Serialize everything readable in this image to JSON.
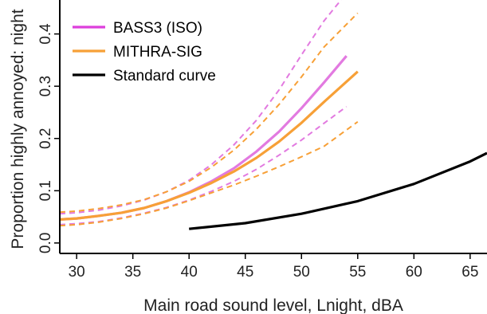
{
  "chart_data": {
    "type": "line",
    "title": "",
    "xlabel": "Main road sound level, Lnight, dBA",
    "ylabel": "Proportion highly annoyed: night",
    "xlim": [
      28.5,
      66.5
    ],
    "ylim": [
      -0.02,
      0.465
    ],
    "xticks": [
      30,
      35,
      40,
      45,
      50,
      55,
      60,
      65
    ],
    "yticks": [
      0.0,
      0.1,
      0.2,
      0.3,
      0.4
    ],
    "ytick_labels": [
      "0.0",
      "0.1",
      "0.2",
      "0.3",
      "0.4"
    ],
    "grid": false,
    "legend_position": "top-left",
    "series": [
      {
        "name": "BASS3 (ISO)",
        "color": "#e27ae0",
        "legend_color": "#dd3fdc",
        "x": [
          28.5,
          30,
          32,
          34,
          36,
          38,
          40,
          42,
          44,
          46,
          48,
          50,
          52,
          54
        ],
        "y": [
          0.045,
          0.047,
          0.052,
          0.058,
          0.067,
          0.08,
          0.097,
          0.118,
          0.143,
          0.175,
          0.213,
          0.258,
          0.307,
          0.358
        ],
        "ci_lower": [
          0.035,
          0.037,
          0.041,
          0.048,
          0.057,
          0.068,
          0.082,
          0.099,
          0.118,
          0.141,
          0.168,
          0.197,
          0.229,
          0.261
        ],
        "ci_upper": [
          0.056,
          0.058,
          0.063,
          0.071,
          0.082,
          0.098,
          0.12,
          0.15,
          0.188,
          0.235,
          0.293,
          0.36,
          0.425,
          0.478
        ]
      },
      {
        "name": "MITHRA-SIG",
        "color": "#f7a037",
        "legend_color": "#f7a037",
        "x": [
          28.5,
          30,
          32,
          34,
          36,
          38,
          40,
          42,
          44,
          46,
          48,
          50,
          52,
          55
        ],
        "y": [
          0.045,
          0.047,
          0.052,
          0.058,
          0.067,
          0.08,
          0.096,
          0.115,
          0.137,
          0.163,
          0.194,
          0.23,
          0.27,
          0.328
        ],
        "ci_lower": [
          0.033,
          0.035,
          0.04,
          0.047,
          0.056,
          0.067,
          0.081,
          0.096,
          0.111,
          0.128,
          0.146,
          0.165,
          0.185,
          0.232
        ],
        "ci_upper": [
          0.059,
          0.061,
          0.066,
          0.073,
          0.083,
          0.098,
          0.118,
          0.145,
          0.178,
          0.218,
          0.265,
          0.318,
          0.375,
          0.44
        ]
      },
      {
        "name": "Standard curve",
        "color": "#000000",
        "legend_color": "#000000",
        "x": [
          40,
          45,
          50,
          55,
          60,
          65,
          66.5
        ],
        "y": [
          0.027,
          0.038,
          0.056,
          0.08,
          0.113,
          0.156,
          0.172
        ]
      }
    ]
  }
}
